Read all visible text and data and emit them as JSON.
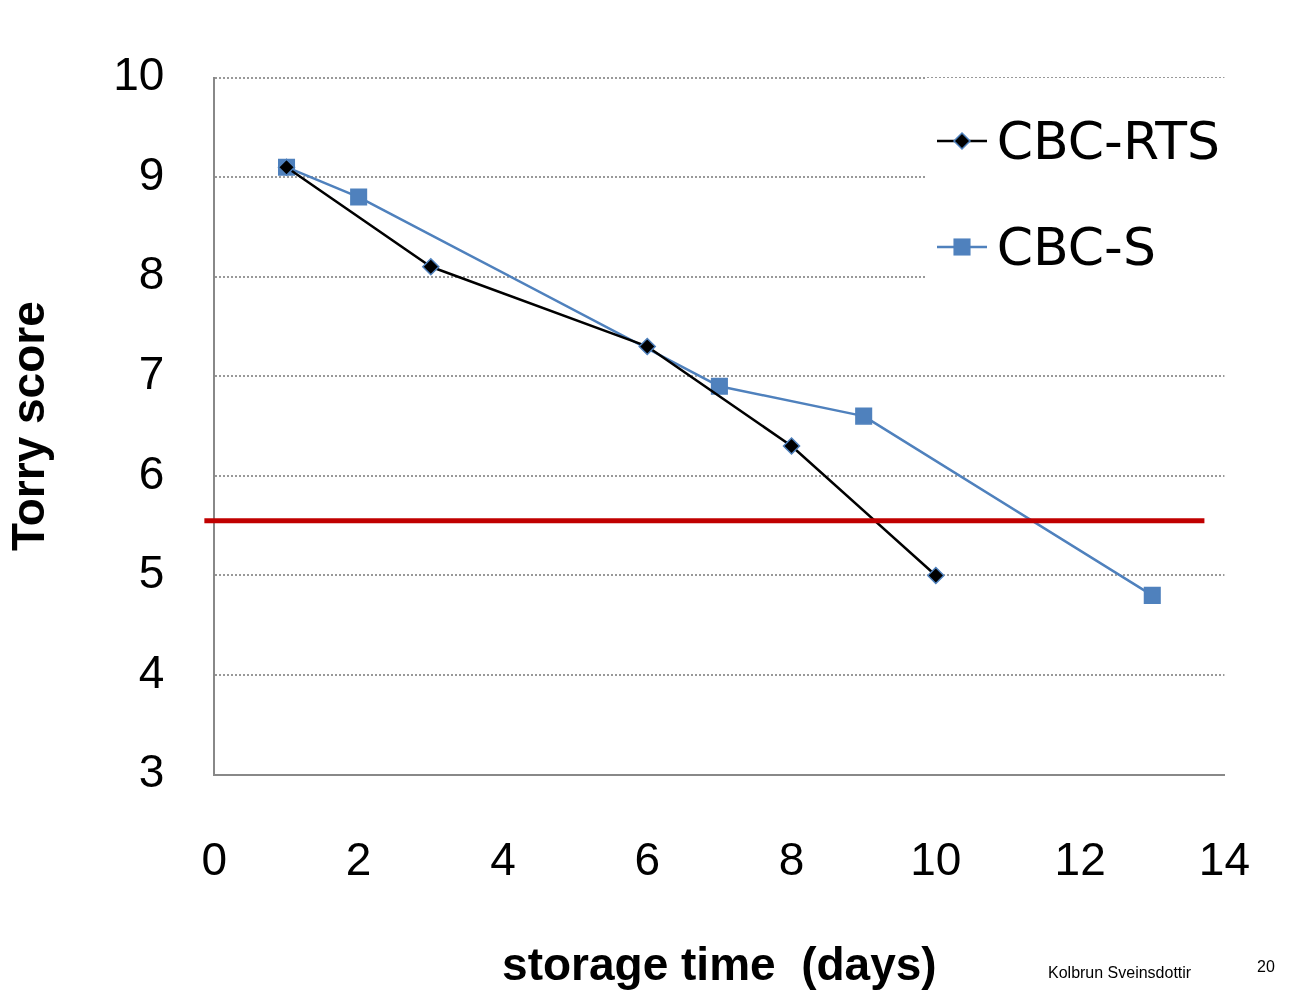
{
  "chart_data": {
    "type": "line",
    "xlabel": "storage time  (days)",
    "ylabel": "Torry score",
    "series": [
      {
        "name": "CBC-RTS",
        "color": "#000000",
        "marker": "diamond",
        "x": [
          1,
          3,
          6,
          8,
          10
        ],
        "values": [
          9.1,
          8.1,
          7.3,
          6.3,
          5.0
        ]
      },
      {
        "name": "CBC-S",
        "color": "#4f81bd",
        "marker": "square",
        "x": [
          1,
          2,
          7,
          9,
          13
        ],
        "values": [
          9.1,
          8.8,
          6.9,
          6.6,
          4.8
        ]
      }
    ],
    "xlim": [
      0,
      14
    ],
    "xticks": [
      0,
      2,
      4,
      6,
      8,
      10,
      12,
      14
    ],
    "ylim": [
      3,
      10
    ],
    "yticks": [
      3,
      4,
      5,
      6,
      7,
      8,
      9,
      10
    ],
    "grid": "y",
    "legend": "top right",
    "line_style": "solid",
    "ref_lines": [
      {
        "axis": "y",
        "value": 5.55,
        "color": "#c00000"
      }
    ],
    "annotations": [
      "Kolbrun Sveinsdottir",
      "20"
    ]
  }
}
